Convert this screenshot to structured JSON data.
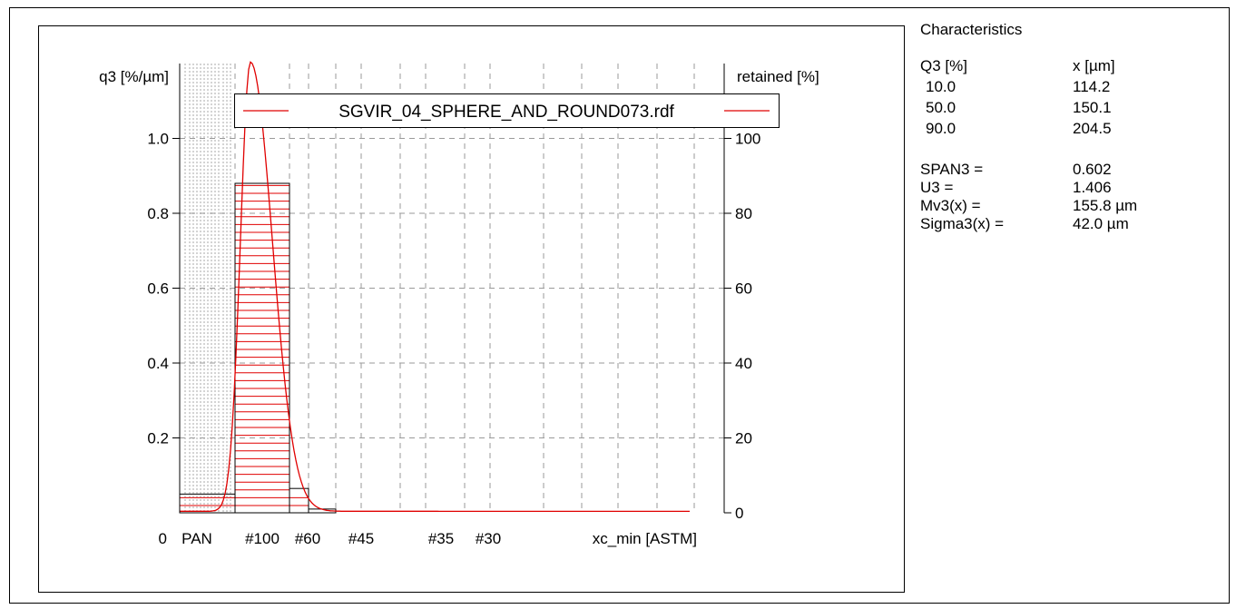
{
  "characteristics": {
    "title": "Characteristics",
    "col_q3_header": "Q3 [%]",
    "col_x_header": "x [µm]",
    "rows": [
      {
        "q3": "10.0",
        "x": "114.2"
      },
      {
        "q3": "50.0",
        "x": "150.1"
      },
      {
        "q3": "90.0",
        "x": "204.5"
      }
    ],
    "stats": [
      {
        "label": "SPAN3 =",
        "value": "0.602"
      },
      {
        "label": "U3 =",
        "value": "1.406"
      },
      {
        "label": "Mv3(x) =",
        "value": "155.8 µm"
      },
      {
        "label": "Sigma3(x) =",
        "value": "42.0 µm"
      }
    ]
  },
  "chart_data": {
    "type": "bar",
    "xlabel": "xc_min [ASTM]",
    "ylabel": "q3 [%/µm]",
    "y2label": "retained [%]",
    "ylim": [
      0,
      1.2
    ],
    "y2lim": [
      0,
      120
    ],
    "yticks": [
      0.2,
      0.4,
      0.6,
      0.8,
      1.0
    ],
    "y2ticks": [
      0,
      20,
      40,
      60,
      80,
      100
    ],
    "y_zero_label": "0",
    "xtick_labels": [
      "PAN",
      "#100",
      "#60",
      "#45",
      "#35",
      "#30"
    ],
    "legend": {
      "entries": [
        "SGVIR_04_SPHERE_AND_ROUND073.rdf"
      ],
      "placement": "top"
    },
    "grid": true,
    "line_color": "#e00000",
    "bars": [
      {
        "bin": "PAN",
        "q3": 0.05
      },
      {
        "bin": "#100",
        "q3": 0.88
      },
      {
        "bin": "#60",
        "q3": 0.065
      },
      {
        "bin": "#45",
        "q3": 0.01
      }
    ],
    "density_curve": {
      "mode_bin": "#100",
      "peak_q3": 1.2
    }
  }
}
